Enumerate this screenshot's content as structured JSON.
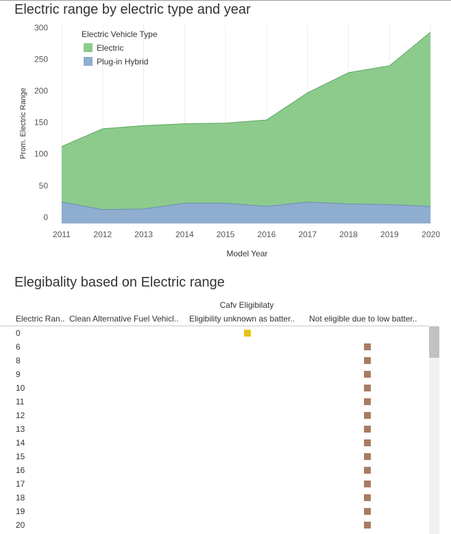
{
  "charts": {
    "area": {
      "title": "Electric range by electric type and year",
      "chart_data": {
        "type": "area",
        "title": "Electric range by electric type and year",
        "xlabel": "Model Year",
        "ylabel": "Prom. Electric Range",
        "x": [
          2011,
          2012,
          2013,
          2014,
          2015,
          2016,
          2017,
          2018,
          2019,
          2020
        ],
        "xlim": [
          2010.8,
          2020.25
        ],
        "ylim": [
          -10,
          305
        ],
        "y_ticks": [
          0,
          50,
          100,
          150,
          200,
          250,
          300
        ],
        "stacked": false,
        "grid": "vertical",
        "legend": {
          "title": "Electric Vehicle Type",
          "placement": "top-left"
        },
        "series": [
          {
            "name": "Electric",
            "color": "#8dcb8d",
            "line_color": "#5aa55a",
            "values": [
              112,
              140,
              145,
              148,
              149,
              154,
              197,
              229,
              240,
              293
            ]
          },
          {
            "name": "Plug-in Hybrid",
            "color": "#8fadcf",
            "line_color": "#6a8db5",
            "values": [
              24,
              12,
              13,
              22,
              22,
              17,
              24,
              21,
              20,
              17
            ]
          }
        ]
      }
    },
    "eligibility": {
      "title": "Elegibality based on Electric range",
      "chart_data": {
        "type": "table",
        "title": "Elegibality based on Electric range",
        "group_header": "Cafv Eligibilaty",
        "row_header": "Electric Ran..",
        "columns": [
          "Clean Alternative Fuel Vehicl..",
          "Eligibility unknown as batter..",
          "Not eligible due to low batter.."
        ],
        "column_colors": [
          "",
          "#e8c214",
          "#a87b64"
        ],
        "rows": [
          {
            "label": "0",
            "col": 1
          },
          {
            "label": "6",
            "col": 2
          },
          {
            "label": "8",
            "col": 2
          },
          {
            "label": "9",
            "col": 2
          },
          {
            "label": "10",
            "col": 2
          },
          {
            "label": "11",
            "col": 2
          },
          {
            "label": "12",
            "col": 2
          },
          {
            "label": "13",
            "col": 2
          },
          {
            "label": "14",
            "col": 2
          },
          {
            "label": "15",
            "col": 2
          },
          {
            "label": "16",
            "col": 2
          },
          {
            "label": "17",
            "col": 2
          },
          {
            "label": "18",
            "col": 2
          },
          {
            "label": "19",
            "col": 2
          },
          {
            "label": "20",
            "col": 2
          }
        ]
      }
    }
  }
}
